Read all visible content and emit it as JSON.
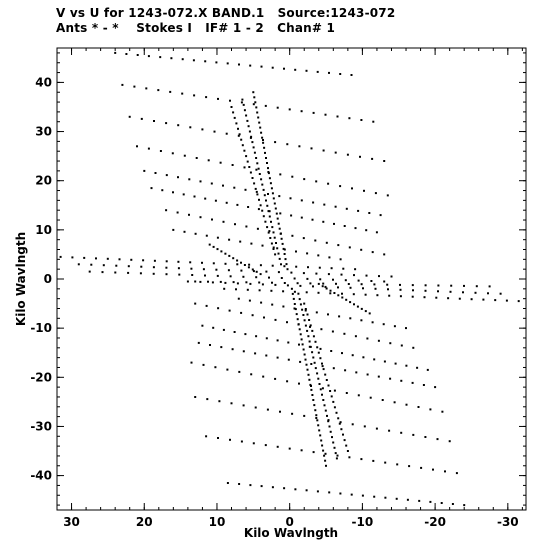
{
  "header": {
    "line1": "V vs U for 1243-072.X BAND.1   Source:1243-072",
    "line2": "Ants * - *    Stokes I   IF# 1 - 2   Chan# 1"
  },
  "chart_data": {
    "type": "scatter",
    "title": "V vs U for 1243-072.X BAND.1   Source:1243-072",
    "subtitle": "Ants * - *    Stokes I   IF# 1 - 2   Chan# 1",
    "xlabel": "Kilo Wavlngth",
    "ylabel": "Kilo Wavlngth",
    "xlim": [
      32,
      -32.5
    ],
    "ylim": [
      -47,
      47
    ],
    "x_ticks": [
      30,
      20,
      10,
      0,
      -10,
      -20,
      -30
    ],
    "y_ticks": [
      40,
      30,
      20,
      10,
      0,
      -10,
      -20,
      -30,
      -40
    ],
    "grid": false,
    "marker_color": "#000000",
    "tracks": [
      {
        "u_start": -8.5,
        "v_start": 41.5,
        "u_end": 24.0,
        "v_end": 46.0,
        "n": 22
      },
      {
        "u_start": -11.5,
        "v_start": 32.0,
        "u_end": 23.0,
        "v_end": 39.5,
        "n": 22
      },
      {
        "u_start": -13.0,
        "v_start": 24.0,
        "u_end": 22.0,
        "v_end": 33.0,
        "n": 22
      },
      {
        "u_start": -13.5,
        "v_start": 17.0,
        "u_end": 21.0,
        "v_end": 27.0,
        "n": 22
      },
      {
        "u_start": -12.5,
        "v_start": 13.0,
        "u_end": 20.0,
        "v_end": 22.0,
        "n": 22
      },
      {
        "u_start": -12.0,
        "v_start": 9.5,
        "u_end": 19.0,
        "v_end": 18.5,
        "n": 22
      },
      {
        "u_start": -13.0,
        "v_start": 5.0,
        "u_end": 17.0,
        "v_end": 14.0,
        "n": 20
      },
      {
        "u_start": -7.0,
        "v_start": 4.0,
        "u_end": 16.0,
        "v_end": 10.0,
        "n": 16
      },
      {
        "u_start": -9.0,
        "v_start": 2.0,
        "u_end": 31.5,
        "v_end": 4.5,
        "n": 26
      },
      {
        "u_start": -14.0,
        "v_start": 0.5,
        "u_end": 29.0,
        "v_end": 3.0,
        "n": 26
      },
      {
        "u_start": -13.0,
        "v_start": -0.5,
        "u_end": 27.5,
        "v_end": 1.5,
        "n": 24
      },
      {
        "u_start": 13.0,
        "v_start": -0.5,
        "u_end": -27.5,
        "v_end": -1.5,
        "n": 24
      },
      {
        "u_start": 14.0,
        "v_start": -0.5,
        "u_end": -29.0,
        "v_end": -3.0,
        "n": 26
      },
      {
        "u_start": 9.0,
        "v_start": -2.0,
        "u_end": -31.5,
        "v_end": -4.5,
        "n": 26
      },
      {
        "u_start": 7.0,
        "v_start": -4.0,
        "u_end": -16.0,
        "v_end": -10.0,
        "n": 16
      },
      {
        "u_start": 13.0,
        "v_start": -5.0,
        "u_end": -17.0,
        "v_end": -14.0,
        "n": 20
      },
      {
        "u_start": 12.0,
        "v_start": -9.5,
        "u_end": -19.0,
        "v_end": -18.5,
        "n": 22
      },
      {
        "u_start": 12.5,
        "v_start": -13.0,
        "u_end": -20.0,
        "v_end": -22.0,
        "n": 22
      },
      {
        "u_start": 13.5,
        "v_start": -17.0,
        "u_end": -21.0,
        "v_end": -27.0,
        "n": 22
      },
      {
        "u_start": 13.0,
        "v_start": -24.0,
        "u_end": -22.0,
        "v_end": -33.0,
        "n": 22
      },
      {
        "u_start": 11.5,
        "v_start": -32.0,
        "u_end": -23.0,
        "v_end": -39.5,
        "n": 22
      },
      {
        "u_start": 8.5,
        "v_start": -41.5,
        "u_end": -24.0,
        "v_end": -46.0,
        "n": 22
      },
      {
        "u_start": 0.3,
        "v_start": 2.0,
        "u_end": 5.0,
        "v_end": 38.0,
        "n": 36
      },
      {
        "u_start": 1.2,
        "v_start": 3.0,
        "u_end": 6.5,
        "v_end": 36.5,
        "n": 32
      },
      {
        "u_start": 2.0,
        "v_start": 5.0,
        "u_end": 8.0,
        "v_end": 35.0,
        "n": 28
      },
      {
        "u_start": -0.3,
        "v_start": -2.0,
        "u_end": -5.0,
        "v_end": -38.0,
        "n": 36
      },
      {
        "u_start": -1.2,
        "v_start": -3.0,
        "u_end": -6.5,
        "v_end": -36.5,
        "n": 32
      },
      {
        "u_start": -2.0,
        "v_start": -5.0,
        "u_end": -8.0,
        "v_end": -35.0,
        "n": 28
      },
      {
        "u_start": 4.0,
        "v_start": 1.0,
        "u_end": 11.0,
        "v_end": 7.0,
        "n": 14
      },
      {
        "u_start": -4.0,
        "v_start": -1.0,
        "u_end": -11.0,
        "v_end": -7.0,
        "n": 14
      }
    ]
  }
}
